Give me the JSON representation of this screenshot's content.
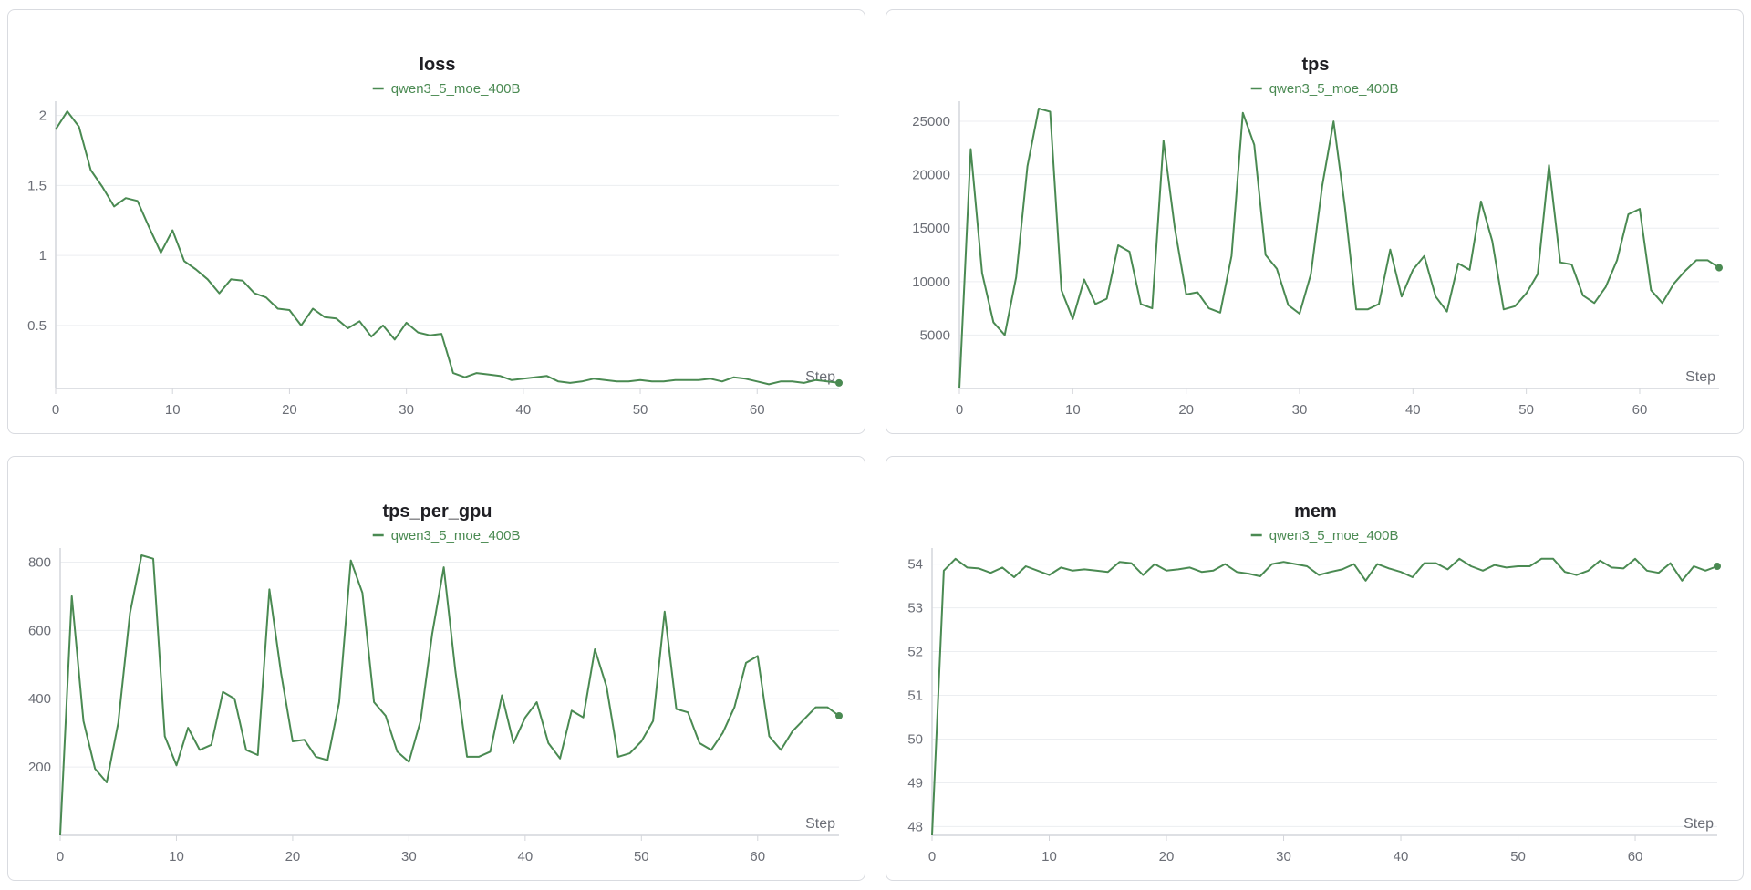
{
  "theme": {
    "series_color": "#4a8a52"
  },
  "chart_data": [
    {
      "type": "line",
      "title": "loss",
      "xlabel": "Step",
      "ylabel": "",
      "legend": "top-center",
      "grid": true,
      "xlim": [
        0,
        67
      ],
      "ylim": [
        0.05,
        2.05
      ],
      "xticks": [
        0,
        10,
        20,
        30,
        40,
        50,
        60
      ],
      "yticks": [
        0.5,
        1,
        1.5,
        2
      ],
      "series": [
        {
          "name": "qwen3_5_moe_400B",
          "x": [
            0,
            1,
            2,
            3,
            4,
            5,
            6,
            7,
            8,
            9,
            10,
            11,
            12,
            13,
            14,
            15,
            16,
            17,
            18,
            19,
            20,
            21,
            22,
            23,
            24,
            25,
            26,
            27,
            28,
            29,
            30,
            31,
            32,
            33,
            34,
            35,
            36,
            37,
            38,
            39,
            40,
            41,
            42,
            43,
            44,
            45,
            46,
            47,
            48,
            49,
            50,
            51,
            52,
            53,
            54,
            55,
            56,
            57,
            58,
            59,
            60,
            61,
            62,
            63,
            64,
            65,
            66,
            67
          ],
          "y": [
            1.9,
            2.03,
            1.92,
            1.61,
            1.49,
            1.35,
            1.41,
            1.39,
            1.2,
            1.02,
            1.18,
            0.96,
            0.9,
            0.83,
            0.73,
            0.83,
            0.82,
            0.73,
            0.7,
            0.62,
            0.61,
            0.5,
            0.62,
            0.56,
            0.55,
            0.48,
            0.53,
            0.42,
            0.5,
            0.4,
            0.52,
            0.45,
            0.43,
            0.44,
            0.16,
            0.13,
            0.16,
            0.15,
            0.14,
            0.11,
            0.12,
            0.13,
            0.14,
            0.1,
            0.09,
            0.1,
            0.12,
            0.11,
            0.1,
            0.1,
            0.11,
            0.1,
            0.1,
            0.11,
            0.11,
            0.11,
            0.12,
            0.1,
            0.13,
            0.12,
            0.1,
            0.08,
            0.1,
            0.1,
            0.09,
            0.11,
            0.1,
            0.09
          ]
        }
      ]
    },
    {
      "type": "line",
      "title": "tps",
      "xlabel": "Step",
      "ylabel": "",
      "legend": "top-center",
      "grid": true,
      "xlim": [
        0,
        67
      ],
      "ylim": [
        0,
        26200
      ],
      "xticks": [
        0,
        10,
        20,
        30,
        40,
        50,
        60
      ],
      "yticks": [
        5000,
        10000,
        15000,
        20000,
        25000
      ],
      "series": [
        {
          "name": "qwen3_5_moe_400B",
          "x": [
            0,
            1,
            2,
            3,
            4,
            5,
            6,
            7,
            8,
            9,
            10,
            11,
            12,
            13,
            14,
            15,
            16,
            17,
            18,
            19,
            20,
            21,
            22,
            23,
            24,
            25,
            26,
            27,
            28,
            29,
            30,
            31,
            32,
            33,
            34,
            35,
            36,
            37,
            38,
            39,
            40,
            41,
            42,
            43,
            44,
            45,
            46,
            47,
            48,
            49,
            50,
            51,
            52,
            53,
            54,
            55,
            56,
            57,
            58,
            59,
            60,
            61,
            62,
            63,
            64,
            65,
            66,
            67
          ],
          "y": [
            0,
            22400,
            10800,
            6200,
            5000,
            10400,
            20800,
            26200,
            25900,
            9200,
            6500,
            10200,
            7900,
            8400,
            13400,
            12800,
            7900,
            7500,
            23200,
            15000,
            8800,
            9000,
            7500,
            7100,
            12400,
            25800,
            22800,
            12500,
            11200,
            7800,
            7000,
            10700,
            19000,
            25000,
            17000,
            7400,
            7400,
            7900,
            13000,
            8600,
            11100,
            12400,
            8600,
            7200,
            11700,
            11100,
            17500,
            13800,
            7400,
            7700,
            8900,
            10700,
            20900,
            11800,
            11600,
            8700,
            8000,
            9500,
            12000,
            16300,
            16800,
            9200,
            8000,
            9800,
            11000,
            12000,
            12000,
            11300
          ]
        }
      ]
    },
    {
      "type": "line",
      "title": "tps_per_gpu",
      "xlabel": "Step",
      "ylabel": "",
      "legend": "top-center",
      "grid": true,
      "xlim": [
        0,
        67
      ],
      "ylim": [
        0,
        820
      ],
      "xticks": [
        0,
        10,
        20,
        30,
        40,
        50,
        60
      ],
      "yticks": [
        200,
        400,
        600,
        800
      ],
      "series": [
        {
          "name": "qwen3_5_moe_400B",
          "x": [
            0,
            1,
            2,
            3,
            4,
            5,
            6,
            7,
            8,
            9,
            10,
            11,
            12,
            13,
            14,
            15,
            16,
            17,
            18,
            19,
            20,
            21,
            22,
            23,
            24,
            25,
            26,
            27,
            28,
            29,
            30,
            31,
            32,
            33,
            34,
            35,
            36,
            37,
            38,
            39,
            40,
            41,
            42,
            43,
            44,
            45,
            46,
            47,
            48,
            49,
            50,
            51,
            52,
            53,
            54,
            55,
            56,
            57,
            58,
            59,
            60,
            61,
            62,
            63,
            64,
            65,
            66,
            67
          ],
          "y": [
            0,
            700,
            335,
            195,
            155,
            330,
            650,
            820,
            810,
            290,
            205,
            315,
            250,
            265,
            420,
            400,
            250,
            235,
            720,
            475,
            275,
            280,
            230,
            220,
            390,
            805,
            710,
            390,
            350,
            245,
            215,
            335,
            590,
            785,
            480,
            230,
            230,
            245,
            410,
            270,
            345,
            390,
            270,
            225,
            365,
            345,
            545,
            435,
            230,
            240,
            275,
            335,
            655,
            370,
            360,
            270,
            250,
            300,
            375,
            505,
            525,
            290,
            250,
            305,
            340,
            375,
            375,
            350
          ]
        }
      ]
    },
    {
      "type": "line",
      "title": "mem",
      "xlabel": "Step",
      "ylabel": "",
      "legend": "top-center",
      "grid": true,
      "xlim": [
        0,
        67
      ],
      "ylim": [
        47.8,
        54.2
      ],
      "xticks": [
        0,
        10,
        20,
        30,
        40,
        50,
        60
      ],
      "yticks": [
        48,
        49,
        50,
        51,
        52,
        53,
        54
      ],
      "series": [
        {
          "name": "qwen3_5_moe_400B",
          "x": [
            0,
            1,
            2,
            3,
            4,
            5,
            6,
            7,
            8,
            9,
            10,
            11,
            12,
            13,
            14,
            15,
            16,
            17,
            18,
            19,
            20,
            21,
            22,
            23,
            24,
            25,
            26,
            27,
            28,
            29,
            30,
            31,
            32,
            33,
            34,
            35,
            36,
            37,
            38,
            39,
            40,
            41,
            42,
            43,
            44,
            45,
            46,
            47,
            48,
            49,
            50,
            51,
            52,
            53,
            54,
            55,
            56,
            57,
            58,
            59,
            60,
            61,
            62,
            63,
            64,
            65,
            66,
            67
          ],
          "y": [
            47.8,
            53.85,
            54.12,
            53.92,
            53.9,
            53.8,
            53.92,
            53.7,
            53.95,
            53.85,
            53.75,
            53.92,
            53.85,
            53.88,
            53.85,
            53.82,
            54.05,
            54.02,
            53.75,
            54.0,
            53.85,
            53.88,
            53.92,
            53.82,
            53.85,
            54.0,
            53.82,
            53.78,
            53.72,
            54.0,
            54.05,
            54.0,
            53.95,
            53.75,
            53.82,
            53.88,
            54.0,
            53.62,
            54.0,
            53.9,
            53.82,
            53.7,
            54.02,
            54.02,
            53.88,
            54.12,
            53.95,
            53.85,
            53.98,
            53.92,
            53.95,
            53.95,
            54.12,
            54.12,
            53.82,
            53.75,
            53.85,
            54.08,
            53.92,
            53.9,
            54.12,
            53.85,
            53.8,
            54.02,
            53.62,
            53.95,
            53.85,
            53.95
          ]
        }
      ]
    }
  ]
}
